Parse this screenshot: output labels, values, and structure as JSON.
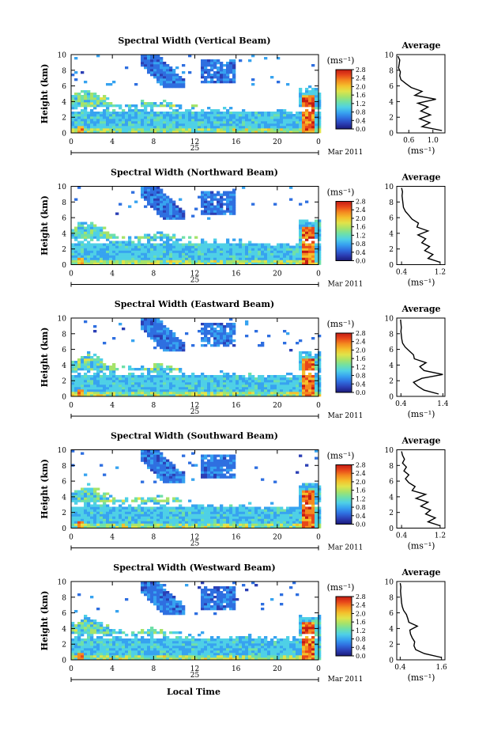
{
  "figure": {
    "xlabel": "Local Time",
    "colors": {
      "colormap": [
        "#1a1a7a",
        "#2b3fb5",
        "#2f6fe0",
        "#37a3f0",
        "#4fd0e6",
        "#6fe0a8",
        "#a6e36a",
        "#e0e34a",
        "#f4c02c",
        "#f48a1f",
        "#e8471a",
        "#c31c14"
      ],
      "background": "#ffffff"
    }
  },
  "chart_data": [
    {
      "type": "heatmap",
      "title": "Spectral Width (Vertical Beam)",
      "ylabel": "Height (km)",
      "ylim": [
        0,
        10
      ],
      "yticks": [
        "0",
        "2",
        "4",
        "6",
        "8",
        "10"
      ],
      "xlim": [
        0,
        24
      ],
      "xticks": [
        "0",
        "4",
        "8",
        "12",
        "16",
        "20",
        "0"
      ],
      "date_label": "25",
      "month_label": "Mar 2011",
      "colorbar": {
        "unit": "(ms⁻¹)",
        "range": [
          0,
          2.8
        ],
        "ticks": [
          "0.0",
          "0.4",
          "0.8",
          "1.2",
          "1.6",
          "2.0",
          "2.4",
          "2.8"
        ]
      },
      "profile": {
        "title": "Average",
        "xlabel": "(ms⁻¹)",
        "xlim": [
          0.4,
          1.2
        ],
        "xticks": [
          "0.6",
          "1.0"
        ],
        "heights": [
          0.3,
          0.8,
          1.3,
          1.8,
          2.3,
          2.8,
          3.3,
          3.8,
          4.3,
          4.8,
          5.3,
          5.8,
          6.3,
          6.8,
          7.3,
          7.8,
          8.3,
          8.8,
          9.3,
          9.8
        ],
        "values": [
          1.15,
          0.82,
          0.95,
          0.78,
          0.96,
          0.8,
          0.92,
          0.75,
          1.05,
          0.7,
          0.82,
          0.64,
          0.55,
          0.47,
          0.45,
          0.46,
          0.43,
          0.44,
          0.45,
          0.42
        ]
      }
    },
    {
      "type": "heatmap",
      "title": "Spectral Width (Northward Beam)",
      "ylabel": "Height (km)",
      "ylim": [
        0,
        10
      ],
      "yticks": [
        "0",
        "2",
        "4",
        "6",
        "8",
        "10"
      ],
      "xlim": [
        0,
        24
      ],
      "xticks": [
        "0",
        "4",
        "8",
        "12",
        "16",
        "20",
        "0"
      ],
      "date_label": "25",
      "month_label": "Mar 2011",
      "colorbar": {
        "unit": "(ms⁻¹)",
        "range": [
          0,
          2.8
        ],
        "ticks": [
          "0.0",
          "0.4",
          "0.8",
          "1.2",
          "1.6",
          "2.0",
          "2.4",
          "2.8"
        ]
      },
      "profile": {
        "title": "Average",
        "xlabel": "(ms⁻¹)",
        "xlim": [
          0.3,
          1.3
        ],
        "xticks": [
          "0.4",
          "1.2"
        ],
        "heights": [
          0.3,
          0.8,
          1.3,
          1.8,
          2.3,
          2.8,
          3.3,
          3.8,
          4.3,
          4.8,
          5.3,
          5.8,
          6.3,
          6.8,
          7.3,
          7.8,
          8.3,
          8.8,
          9.3,
          9.8
        ],
        "values": [
          1.2,
          0.95,
          1.05,
          0.88,
          0.98,
          0.82,
          0.9,
          0.74,
          0.95,
          0.72,
          0.75,
          0.62,
          0.55,
          0.48,
          0.44,
          0.43,
          0.42,
          0.41,
          0.42,
          0.4
        ]
      }
    },
    {
      "type": "heatmap",
      "title": "Spectral Width (Eastward Beam)",
      "ylabel": "Height (km)",
      "ylim": [
        0,
        10
      ],
      "yticks": [
        "0",
        "2",
        "4",
        "6",
        "8",
        "10"
      ],
      "xlim": [
        0,
        24
      ],
      "xticks": [
        "0",
        "4",
        "8",
        "12",
        "16",
        "20",
        "0"
      ],
      "date_label": "25",
      "month_label": "Mar 2011",
      "colorbar": {
        "unit": "(ms⁻¹)",
        "range": [
          0,
          2.8
        ],
        "ticks": [
          "0.0",
          "0.4",
          "0.8",
          "1.2",
          "1.6",
          "2.0",
          "2.4",
          "2.8"
        ]
      },
      "profile": {
        "title": "Average",
        "xlabel": "(ms⁻¹)",
        "xlim": [
          0.3,
          1.45
        ],
        "xticks": [
          "0.4",
          "1.4"
        ],
        "heights": [
          0.3,
          0.8,
          1.3,
          1.8,
          2.3,
          2.8,
          3.3,
          3.8,
          4.3,
          4.8,
          5.3,
          5.8,
          6.3,
          6.8,
          7.3,
          7.8,
          8.3,
          8.8,
          9.3,
          9.8
        ],
        "values": [
          1.3,
          0.95,
          0.8,
          0.7,
          0.9,
          1.4,
          0.95,
          0.85,
          1.0,
          0.72,
          0.7,
          0.6,
          0.5,
          0.44,
          0.42,
          0.41,
          0.4,
          0.41,
          0.4,
          0.39
        ]
      }
    },
    {
      "type": "heatmap",
      "title": "Spectral Width (Southward Beam)",
      "ylabel": "Height (km)",
      "ylim": [
        0,
        10
      ],
      "yticks": [
        "0",
        "2",
        "4",
        "6",
        "8",
        "10"
      ],
      "xlim": [
        0,
        24
      ],
      "xticks": [
        "0",
        "4",
        "8",
        "12",
        "16",
        "20",
        "0"
      ],
      "date_label": "25",
      "month_label": "Mar 2011",
      "colorbar": {
        "unit": "(ms⁻¹)",
        "range": [
          0,
          2.8
        ],
        "ticks": [
          "0.0",
          "0.4",
          "0.8",
          "1.2",
          "1.6",
          "2.0",
          "2.4",
          "2.8"
        ]
      },
      "profile": {
        "title": "Average",
        "xlabel": "(ms⁻¹)",
        "xlim": [
          0.3,
          1.3
        ],
        "xticks": [
          "0.4",
          "1.2"
        ],
        "heights": [
          0.3,
          0.8,
          1.3,
          1.8,
          2.3,
          2.8,
          3.3,
          3.8,
          4.3,
          4.8,
          5.3,
          5.8,
          6.3,
          6.8,
          7.3,
          7.8,
          8.3,
          8.8,
          9.3,
          9.8
        ],
        "values": [
          1.2,
          0.95,
          1.1,
          0.9,
          1.0,
          0.8,
          0.95,
          0.7,
          0.9,
          0.62,
          0.68,
          0.55,
          0.48,
          0.55,
          0.45,
          0.5,
          0.42,
          0.46,
          0.42,
          0.4
        ]
      }
    },
    {
      "type": "heatmap",
      "title": "Spectral Width (Westward Beam)",
      "ylabel": "Height (km)",
      "ylim": [
        0,
        10
      ],
      "yticks": [
        "0",
        "2",
        "4",
        "6",
        "8",
        "10"
      ],
      "xlim": [
        0,
        24
      ],
      "xticks": [
        "0",
        "4",
        "8",
        "12",
        "16",
        "20",
        "0"
      ],
      "date_label": "25",
      "month_label": "Mar 2011",
      "colorbar": {
        "unit": "(ms⁻¹)",
        "range": [
          0,
          2.8
        ],
        "ticks": [
          "0.0",
          "0.4",
          "0.8",
          "1.2",
          "1.6",
          "2.0",
          "2.4",
          "2.8"
        ]
      },
      "profile": {
        "title": "Average",
        "xlabel": "(ms⁻¹)",
        "xlim": [
          0.3,
          1.7
        ],
        "xticks": [
          "0.4",
          "1.6"
        ],
        "heights": [
          0.3,
          0.8,
          1.3,
          1.8,
          2.3,
          2.8,
          3.3,
          3.8,
          4.3,
          4.8,
          5.3,
          5.8,
          6.3,
          6.8,
          7.3,
          7.8,
          8.3,
          8.8,
          9.3,
          9.8
        ],
        "values": [
          1.6,
          1.1,
          0.85,
          0.8,
          0.82,
          0.75,
          0.7,
          0.68,
          0.9,
          0.65,
          0.62,
          0.58,
          0.5,
          0.46,
          0.44,
          0.43,
          0.42,
          0.41,
          0.42,
          0.4
        ]
      }
    }
  ]
}
